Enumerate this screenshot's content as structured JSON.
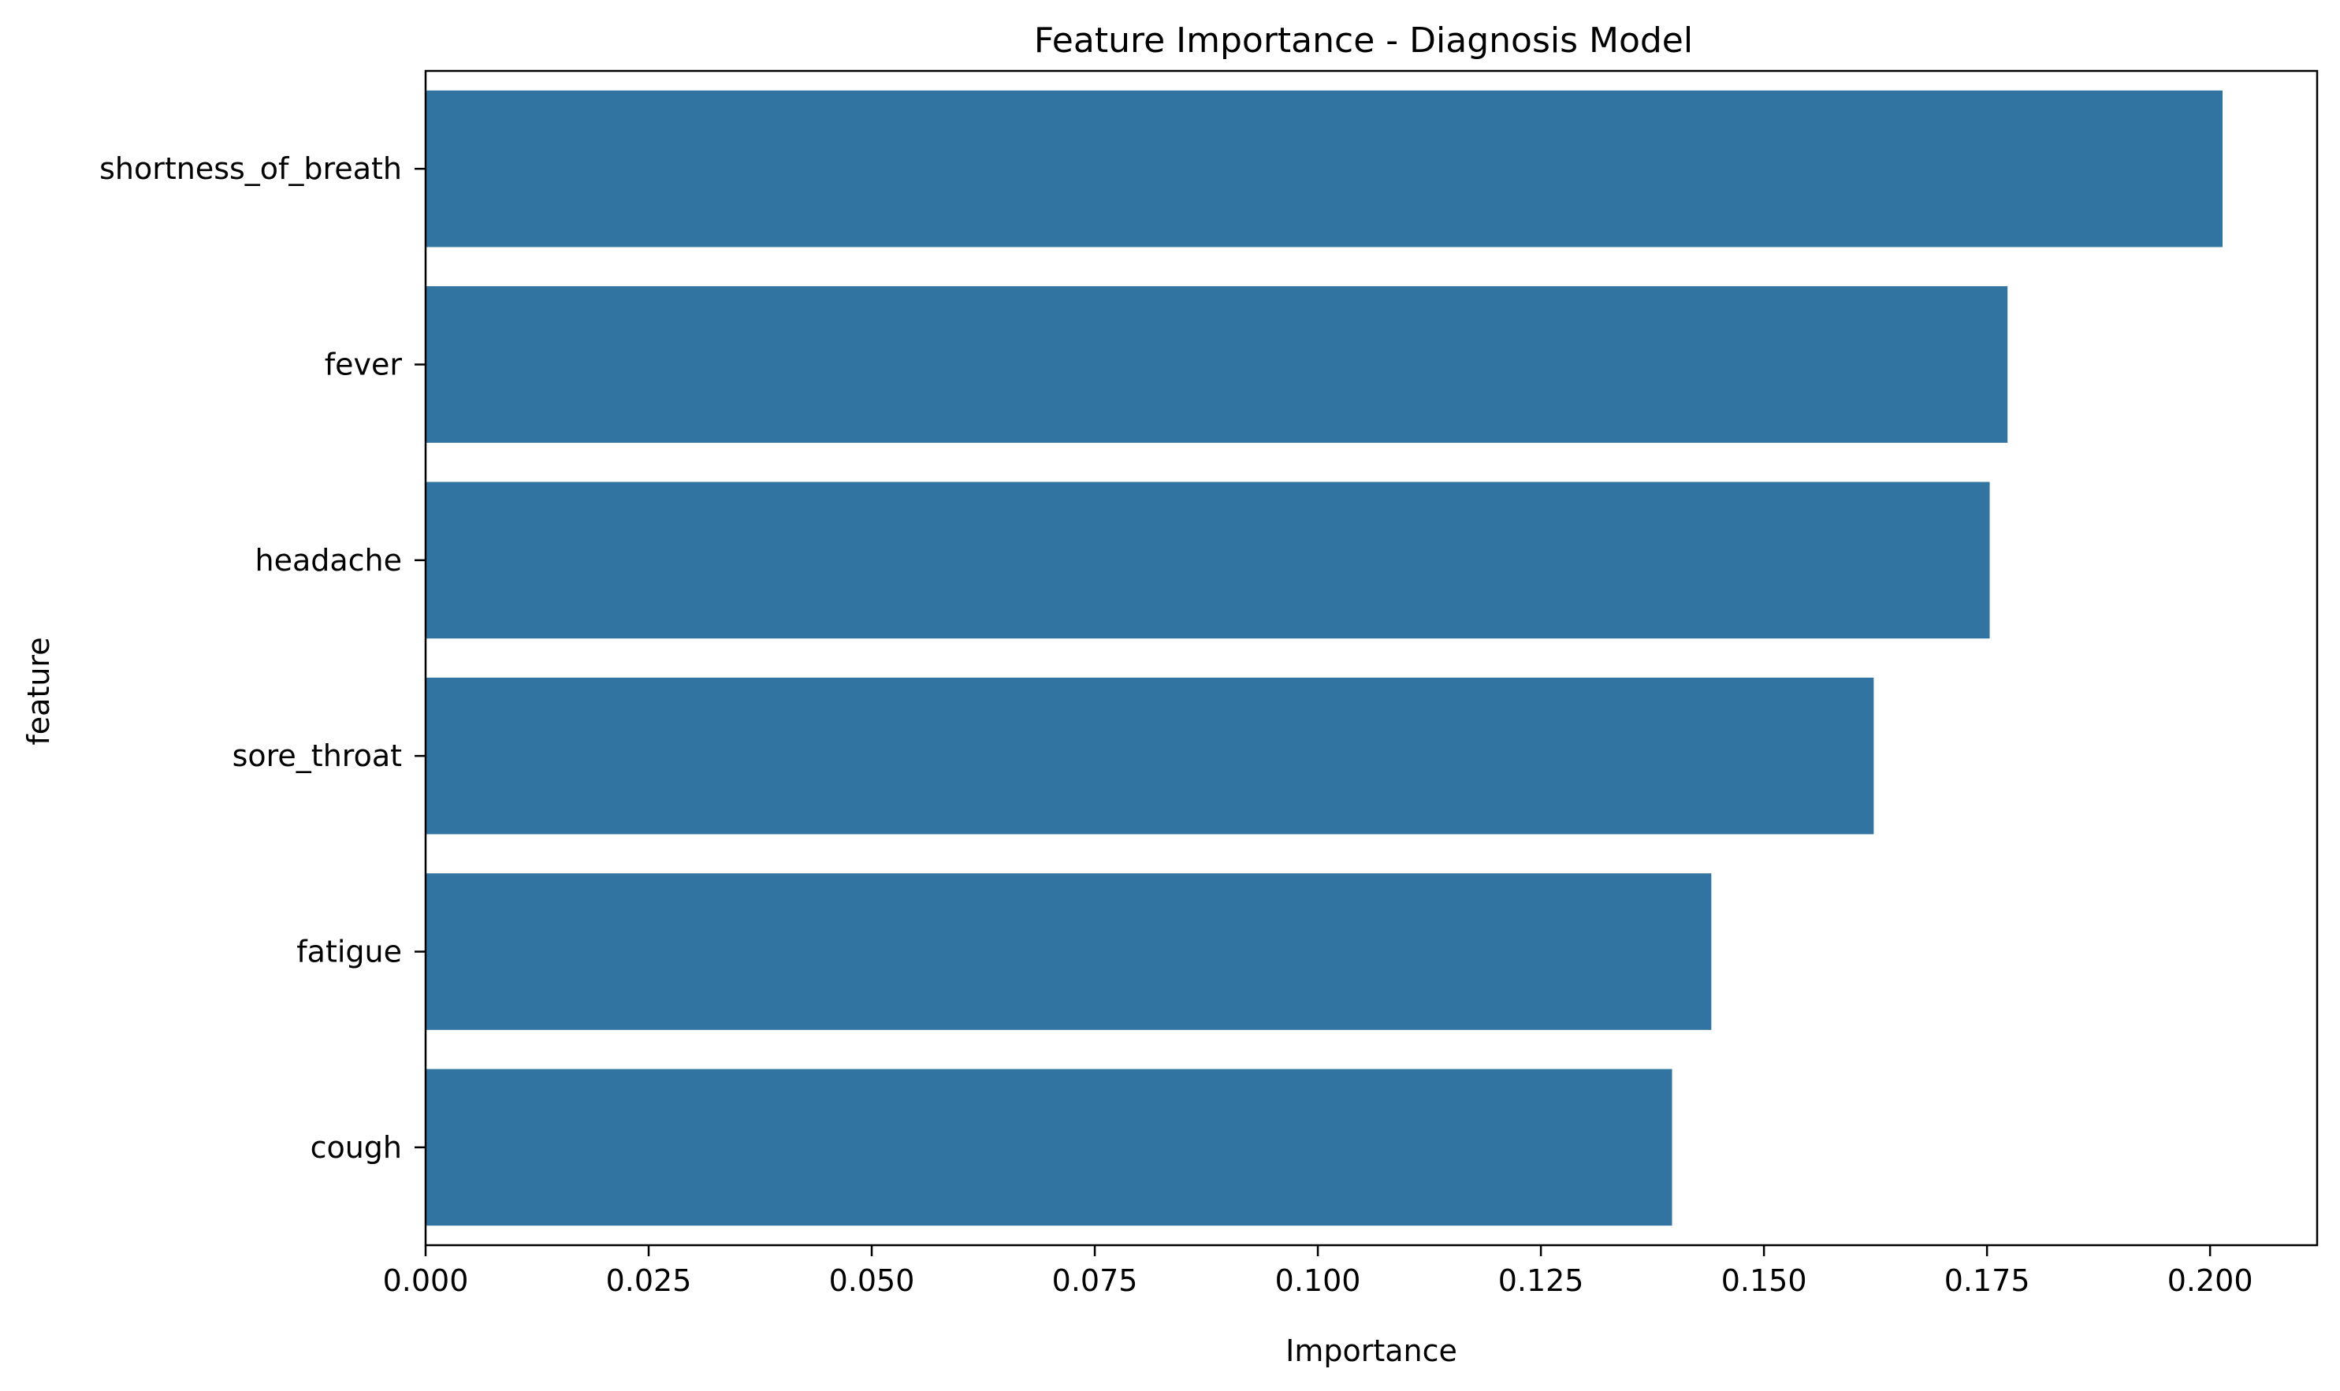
{
  "chart_data": {
    "type": "bar",
    "orientation": "horizontal",
    "title": "Feature Importance - Diagnosis Model",
    "xlabel": "Importance",
    "ylabel": "feature",
    "categories": [
      "shortness_of_breath",
      "fever",
      "headache",
      "sore_throat",
      "fatigue",
      "cough"
    ],
    "values": [
      0.2014,
      0.1773,
      0.1753,
      0.1623,
      0.1441,
      0.1397
    ],
    "xlim": [
      0.0,
      0.212
    ],
    "xticks": [
      0.0,
      0.025,
      0.05,
      0.075,
      0.1,
      0.125,
      0.15,
      0.175,
      0.2
    ],
    "xtick_labels": [
      "0.000",
      "0.025",
      "0.050",
      "0.075",
      "0.100",
      "0.125",
      "0.150",
      "0.175",
      "0.200"
    ],
    "grid": false,
    "legend": "none",
    "bar_color": "#3274a1"
  }
}
